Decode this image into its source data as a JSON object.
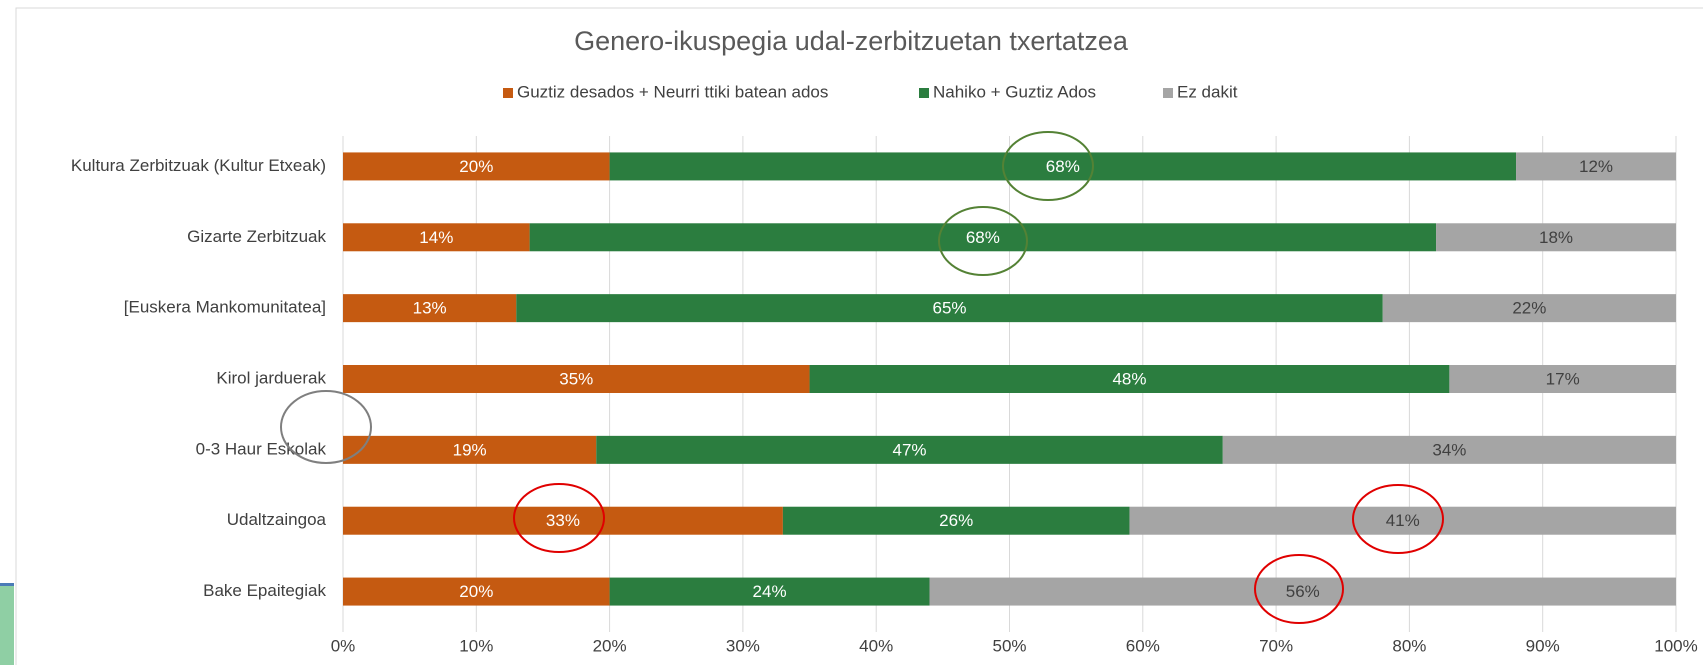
{
  "chart_data": {
    "type": "stacked_barh",
    "title": "Genero-ikuspegia udal-zerbitzuetan txertatzea",
    "categories": [
      "Kultura Zerbitzuak (Kultur Etxeak)",
      "Gizarte Zerbitzuak",
      "[Euskera Mankomunitatea]",
      "Kirol jarduerak",
      "0-3 Haur Eskolak",
      "Udaltzaingoa",
      "Bake Epaitegiak"
    ],
    "series": [
      {
        "name": "Guztiz desados + Neurri ttiki batean ados",
        "color": "#c55a11",
        "label_color": "#ffffff",
        "values": [
          20,
          14,
          13,
          35,
          19,
          33,
          20
        ],
        "value_labels": [
          "20%",
          "14%",
          "13%",
          "35%",
          "19%",
          "33%",
          "20%"
        ]
      },
      {
        "name": "Nahiko + Guztiz Ados",
        "color": "#2b7d3f",
        "label_color": "#ffffff",
        "values": [
          68,
          68,
          65,
          48,
          47,
          26,
          24
        ],
        "value_labels": [
          "68%",
          "68%",
          "65%",
          "48%",
          "47%",
          "26%",
          "24%"
        ]
      },
      {
        "name": "Ez dakit",
        "color": "#a5a5a5",
        "label_color": "#404040",
        "values": [
          12,
          18,
          22,
          17,
          34,
          41,
          56
        ],
        "value_labels": [
          "12%",
          "18%",
          "22%",
          "17%",
          "34%",
          "41%",
          "56%"
        ]
      }
    ],
    "xlim": [
      0,
      100
    ],
    "xticks": [
      {
        "value": 0,
        "label": "0%"
      },
      {
        "value": 10,
        "label": "10%"
      },
      {
        "value": 20,
        "label": "20%"
      },
      {
        "value": 30,
        "label": "30%"
      },
      {
        "value": 40,
        "label": "40%"
      },
      {
        "value": 50,
        "label": "50%"
      },
      {
        "value": 60,
        "label": "60%"
      },
      {
        "value": 70,
        "label": "70%"
      },
      {
        "value": 80,
        "label": "80%"
      },
      {
        "value": 90,
        "label": "90%"
      },
      {
        "value": 100,
        "label": "100%"
      }
    ],
    "grid": true,
    "legend": "top"
  }
}
